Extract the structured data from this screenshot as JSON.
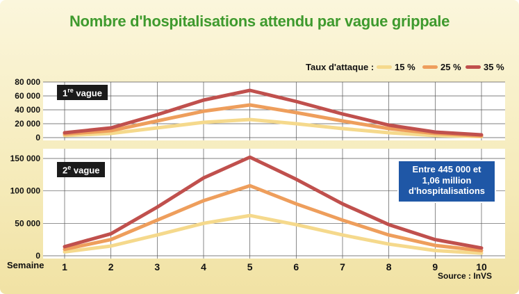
{
  "title": "Nombre d'hospitalisations attendu par vague grippale",
  "legend": {
    "label": "Taux d'attaque :",
    "entries": [
      {
        "name": "15 %",
        "color": "#f5d98c"
      },
      {
        "name": "25 %",
        "color": "#ee9e5c"
      },
      {
        "name": "35 %",
        "color": "#c0504d"
      }
    ]
  },
  "panels": {
    "vague1": {
      "label_num": "1",
      "label_sup": "re",
      "label_rest": " vague"
    },
    "vague2": {
      "label_num": "2",
      "label_sup": "e",
      "label_rest": " vague"
    }
  },
  "infobox": {
    "line1": "Entre 445 000 et",
    "line2": "1,06 million",
    "line3": "d'hospitalisations"
  },
  "xlabel": "Semaine",
  "source": "Source : InVS",
  "chart_data": [
    {
      "type": "line",
      "label": "1re vague",
      "x": [
        1,
        2,
        3,
        4,
        5,
        6,
        7,
        8,
        9,
        10
      ],
      "ylim": [
        0,
        80000
      ],
      "yticks": [
        0,
        20000,
        40000,
        60000,
        80000
      ],
      "ytick_labels": [
        "0",
        "20 000",
        "40 000",
        "60 000",
        "80 000"
      ],
      "series": [
        {
          "name": "15 %",
          "values": [
            3000,
            6000,
            14000,
            22000,
            26000,
            20000,
            13000,
            7000,
            3000,
            1500
          ]
        },
        {
          "name": "25 %",
          "values": [
            5000,
            10000,
            24000,
            38000,
            47000,
            36000,
            24000,
            13000,
            6000,
            2500
          ]
        },
        {
          "name": "35 %",
          "values": [
            7000,
            14000,
            33000,
            54000,
            68000,
            52000,
            34000,
            18000,
            8000,
            4000
          ]
        }
      ]
    },
    {
      "type": "line",
      "label": "2e vague",
      "x": [
        1,
        2,
        3,
        4,
        5,
        6,
        7,
        8,
        9,
        10
      ],
      "ylim": [
        0,
        150000
      ],
      "yticks": [
        0,
        50000,
        100000,
        150000
      ],
      "ytick_labels": [
        "0",
        "50 000",
        "100 000",
        "150 000"
      ],
      "series": [
        {
          "name": "15 %",
          "values": [
            6000,
            15000,
            32000,
            50000,
            62000,
            48000,
            32000,
            18000,
            8000,
            4000
          ]
        },
        {
          "name": "25 %",
          "values": [
            10000,
            25000,
            55000,
            85000,
            108000,
            80000,
            55000,
            32000,
            16000,
            8000
          ]
        },
        {
          "name": "35 %",
          "values": [
            14000,
            34000,
            75000,
            120000,
            152000,
            118000,
            80000,
            48000,
            25000,
            12000
          ]
        }
      ]
    }
  ]
}
